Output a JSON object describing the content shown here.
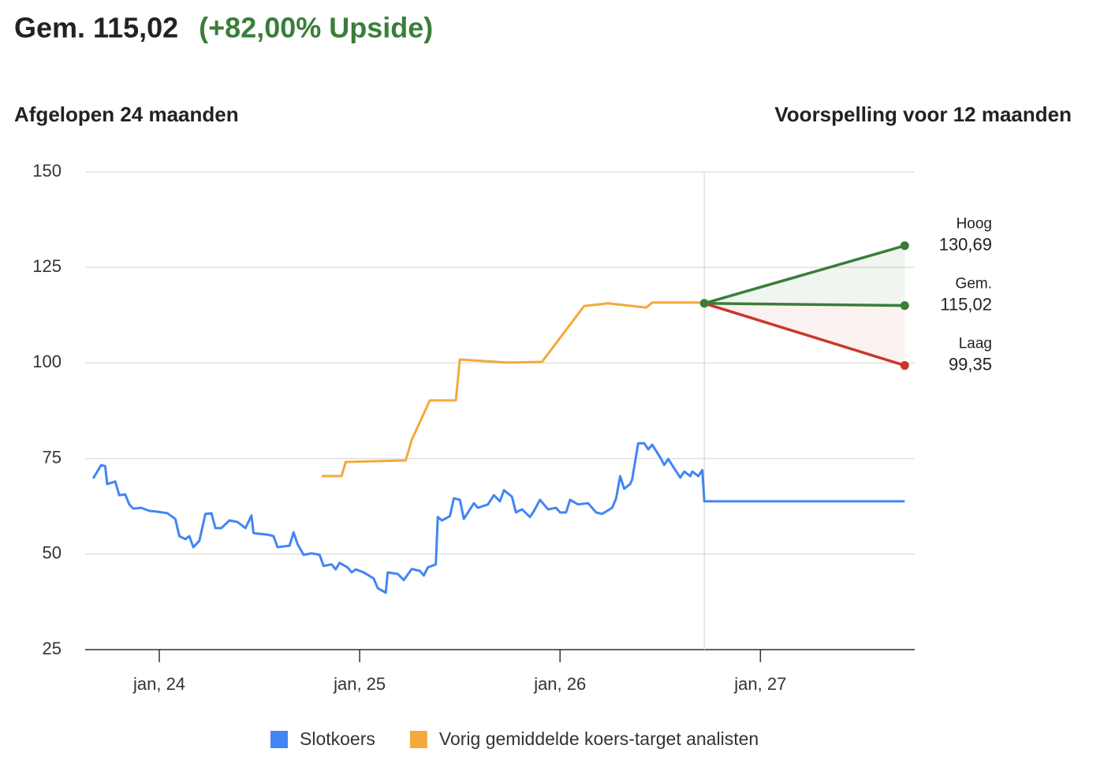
{
  "chart_data": {
    "type": "line",
    "title": "Gem. 115,02",
    "subtitle": "(+82,00% Upside)",
    "left_heading": "Afgelopen 24 maanden",
    "right_heading": "Voorspelling voor 12 maanden",
    "xlim": [
      2023.63,
      2027.77
    ],
    "xticks": [
      {
        "value": 2024,
        "label": "jan, 24"
      },
      {
        "value": 2025,
        "label": "jan, 25"
      },
      {
        "value": 2026,
        "label": "jan, 26"
      },
      {
        "value": 2027,
        "label": "jan, 27"
      }
    ],
    "ylim": [
      25,
      150
    ],
    "yticks": [
      25,
      50,
      75,
      100,
      125,
      150
    ],
    "grid": true,
    "series": [
      {
        "name": "Slotkoers",
        "color": "#4285f4",
        "x": [
          2023.67,
          2023.71,
          2023.73,
          2023.74,
          2023.78,
          2023.8,
          2023.83,
          2023.85,
          2023.87,
          2023.91,
          2023.95,
          2023.99,
          2024.04,
          2024.08,
          2024.1,
          2024.13,
          2024.15,
          2024.17,
          2024.2,
          2024.23,
          2024.26,
          2024.28,
          2024.31,
          2024.35,
          2024.39,
          2024.43,
          2024.46,
          2024.47,
          2024.5,
          2024.54,
          2024.57,
          2024.59,
          2024.65,
          2024.67,
          2024.69,
          2024.72,
          2024.76,
          2024.8,
          2024.82,
          2024.86,
          2024.88,
          2024.9,
          2024.94,
          2024.96,
          2024.98,
          2025.02,
          2025.07,
          2025.09,
          2025.13,
          2025.14,
          2025.19,
          2025.22,
          2025.26,
          2025.3,
          2025.32,
          2025.34,
          2025.38,
          2025.39,
          2025.41,
          2025.45,
          2025.47,
          2025.5,
          2025.52,
          2025.57,
          2025.59,
          2025.64,
          2025.67,
          2025.7,
          2025.72,
          2025.76,
          2025.78,
          2025.81,
          2025.85,
          2025.87,
          2025.9,
          2025.94,
          2025.98,
          2026.0,
          2026.03,
          2026.05,
          2026.09,
          2026.14,
          2026.18,
          2026.21,
          2026.26,
          2026.28,
          2026.3,
          2026.32,
          2026.35,
          2026.36,
          2026.39,
          2026.42,
          2026.44,
          2026.46,
          2026.5,
          2026.52,
          2026.54,
          2026.57,
          2026.6,
          2026.62,
          2026.65,
          2026.66,
          2026.69,
          2026.71,
          2026.72,
          2027.72
        ],
        "values": [
          69.8,
          73.3,
          73,
          68.3,
          69,
          65.4,
          65.6,
          63,
          61.9,
          62.1,
          61.3,
          61.1,
          60.7,
          59.2,
          54.7,
          53.9,
          54.7,
          51.8,
          53.5,
          60.5,
          60.7,
          56.8,
          56.8,
          58.8,
          58.4,
          56.8,
          60.1,
          55.5,
          55.3,
          55.1,
          54.7,
          51.8,
          52.2,
          55.7,
          52.6,
          49.8,
          50.2,
          49.8,
          46.9,
          47.3,
          46,
          47.7,
          46.5,
          45.2,
          46,
          45.2,
          43.6,
          41.1,
          39.9,
          45.2,
          44.8,
          43.2,
          46.1,
          45.6,
          44.4,
          46.5,
          47.3,
          59.7,
          58.8,
          59.9,
          64.6,
          64.2,
          59.2,
          63.3,
          62.1,
          63,
          65.4,
          63.8,
          66.7,
          65,
          60.9,
          61.7,
          59.7,
          61.3,
          64.2,
          61.7,
          62.1,
          60.9,
          60.9,
          64.2,
          63,
          63.3,
          60.9,
          60.5,
          62.1,
          64.6,
          70.4,
          67.1,
          68.3,
          69.6,
          79,
          79,
          77.4,
          78.6,
          75.3,
          73.3,
          74.9,
          72.4,
          70,
          71.6,
          70.4,
          71.6,
          70.4,
          72,
          63.8,
          63.8
        ]
      },
      {
        "name": "Vorig gemiddelde koers-target analisten",
        "color": "#f4a93b",
        "x": [
          2024.81,
          2024.91,
          2024.93,
          2025.23,
          2025.26,
          2025.35,
          2025.48,
          2025.5,
          2025.74,
          2025.91,
          2026.12,
          2026.24,
          2026.43,
          2026.46,
          2026.72
        ],
        "values": [
          70.4,
          70.4,
          74.1,
          74.5,
          79.9,
          90.2,
          90.2,
          100.9,
          100.1,
          100.3,
          114.9,
          115.6,
          114.5,
          115.8,
          115.8
        ]
      }
    ],
    "forecast": {
      "x": [
        2026.72,
        2027.72
      ],
      "series": [
        {
          "name": "Hoog",
          "color": "#3a7d3a",
          "values": [
            115.6,
            130.69
          ],
          "value_label": "130,69"
        },
        {
          "name": "Gem.",
          "color": "#3a7d3a",
          "values": [
            115.6,
            115.02
          ],
          "value_label": "115,02"
        },
        {
          "name": "Laag",
          "color": "#c8372d",
          "values": [
            115.6,
            99.35
          ],
          "value_label": "99,35"
        }
      ]
    }
  }
}
